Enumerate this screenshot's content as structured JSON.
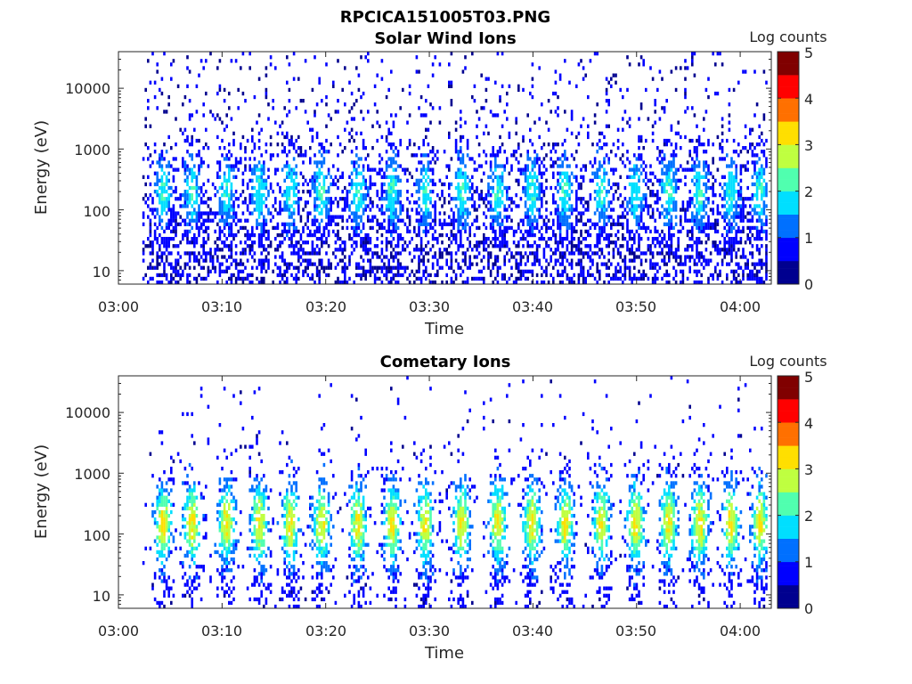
{
  "figure": {
    "title": "RPCICA151005T03.PNG"
  },
  "colormap": [
    "#00008f",
    "#0000ff",
    "#0070ff",
    "#00dfff",
    "#50ffaf",
    "#bfff40",
    "#ffdf00",
    "#ff7000",
    "#ff0000",
    "#800000"
  ],
  "chart_data": [
    {
      "type": "heatmap",
      "title": "Solar Wind Ions",
      "xlabel": "Time",
      "ylabel": "Energy (eV)",
      "x_tick_labels": [
        "03:00",
        "03:10",
        "03:20",
        "03:30",
        "03:40",
        "03:50",
        "04:00"
      ],
      "x_tick_minutes": [
        0,
        10,
        20,
        30,
        40,
        50,
        60
      ],
      "xlim_minutes": [
        0,
        63
      ],
      "data_x_range_minutes": [
        2.3,
        62.7
      ],
      "y_scale": "log",
      "ylim": [
        6,
        40000
      ],
      "y_tick_values": [
        10,
        100,
        1000,
        10000
      ],
      "y_tick_labels": [
        "10",
        "100",
        "1000",
        "10000"
      ],
      "colorbar": {
        "label": "Log counts",
        "range": [
          0,
          5
        ],
        "tick_labels": [
          "0",
          "1",
          "2",
          "3",
          "4",
          "5"
        ]
      },
      "pattern": "sparse",
      "burst_centers_minutes": [
        4.2,
        7.0,
        10.3,
        13.5,
        16.5,
        19.5,
        23.0,
        26.3,
        29.5,
        33.0,
        36.5,
        39.8,
        43.0,
        46.5,
        49.8,
        53.0,
        56.0,
        59.0,
        61.8
      ],
      "peak_energy_eV": 200,
      "peak_log_counts": 1.8
    },
    {
      "type": "heatmap",
      "title": "Cometary Ions",
      "xlabel": "Time",
      "ylabel": "Energy (eV)",
      "x_tick_labels": [
        "03:00",
        "03:10",
        "03:20",
        "03:30",
        "03:40",
        "03:50",
        "04:00"
      ],
      "x_tick_minutes": [
        0,
        10,
        20,
        30,
        40,
        50,
        60
      ],
      "xlim_minutes": [
        0,
        63
      ],
      "data_x_range_minutes": [
        2.3,
        62.7
      ],
      "y_scale": "log",
      "ylim": [
        6,
        40000
      ],
      "y_tick_values": [
        10,
        100,
        1000,
        10000
      ],
      "y_tick_labels": [
        "10",
        "100",
        "1000",
        "10000"
      ],
      "colorbar": {
        "label": "Log counts",
        "range": [
          0,
          5
        ],
        "tick_labels": [
          "0",
          "1",
          "2",
          "3",
          "4",
          "5"
        ]
      },
      "pattern": "bursts",
      "burst_centers_minutes": [
        4.2,
        7.0,
        10.3,
        13.5,
        16.5,
        19.5,
        23.0,
        26.3,
        29.5,
        33.0,
        36.5,
        39.8,
        43.0,
        46.5,
        49.8,
        53.0,
        56.0,
        59.0,
        61.8
      ],
      "peak_energy_eV": 150,
      "peak_log_counts": 2.5
    }
  ]
}
